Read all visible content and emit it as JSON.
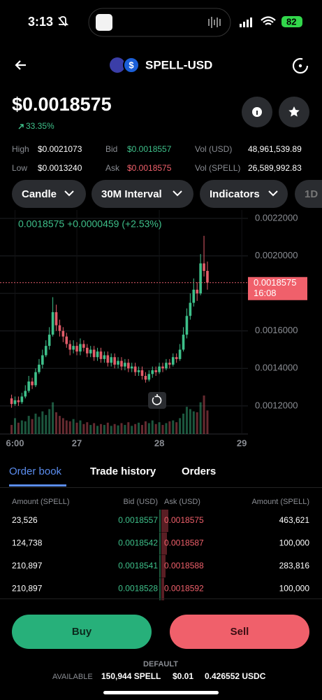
{
  "status_bar": {
    "time": "3:13",
    "battery": "82"
  },
  "header": {
    "title": "SPELL-USD"
  },
  "price": {
    "value": "$0.0018575",
    "change": "33.35%"
  },
  "stats": [
    [
      {
        "label": "High",
        "value": "$0.0021073"
      },
      {
        "label": "Bid",
        "value": "$0.0018557"
      },
      {
        "label": "Vol (USD)",
        "value": "48,961,539.89"
      }
    ],
    [
      {
        "label": "Low",
        "value": "$0.0013240"
      },
      {
        "label": "Ask",
        "value": "$0.0018575"
      },
      {
        "label": "Vol (SPELL)",
        "value": "26,589,992.83"
      }
    ]
  ],
  "controls": [
    "Candle",
    "30M Interval",
    "Indicators",
    "1D"
  ],
  "chart_data": {
    "type": "candlestick",
    "legend_text": "0.0018575 +0.0000459 (+2.53%)",
    "last_price": {
      "value": 0.0018575,
      "label": "0.0018575"
    },
    "last_time": "16:08",
    "up_color": "#3ec08a",
    "down_color": "#e35d6a",
    "x": [
      5,
      6,
      7,
      8,
      9,
      10,
      11,
      12,
      13,
      14,
      15,
      16,
      17,
      18,
      19,
      20,
      21,
      22,
      23,
      24,
      25,
      26,
      27,
      28,
      29,
      30,
      31,
      32,
      33,
      34,
      35,
      36,
      37,
      38,
      39,
      40,
      41,
      42,
      43,
      44,
      45,
      46,
      47,
      48,
      49,
      50,
      51,
      52,
      53,
      54,
      55,
      56,
      57,
      58,
      59,
      60,
      61,
      62
    ],
    "open": [
      0.00124,
      0.00121,
      0.00123,
      0.00122,
      0.00125,
      0.00128,
      0.00133,
      0.00131,
      0.00138,
      0.00142,
      0.00147,
      0.00152,
      0.00158,
      0.0017,
      0.00163,
      0.0016,
      0.00157,
      0.00153,
      0.0015,
      0.00152,
      0.00149,
      0.00153,
      0.00151,
      0.00148,
      0.0015,
      0.00146,
      0.00149,
      0.00145,
      0.00147,
      0.00143,
      0.00146,
      0.00142,
      0.00144,
      0.00141,
      0.00143,
      0.0014,
      0.00141,
      0.00138,
      0.00139,
      0.00136,
      0.00134,
      0.00137,
      0.00139,
      0.00138,
      0.00141,
      0.0014,
      0.00143,
      0.00142,
      0.00146,
      0.00145,
      0.0015,
      0.00158,
      0.00168,
      0.00175,
      0.00182,
      0.0018,
      0.00196,
      0.00192
    ],
    "high": [
      0.00126,
      0.00125,
      0.00125,
      0.00127,
      0.00131,
      0.00136,
      0.00135,
      0.0014,
      0.00145,
      0.0015,
      0.00155,
      0.00162,
      0.00178,
      0.00174,
      0.00166,
      0.00162,
      0.00159,
      0.00155,
      0.00155,
      0.00154,
      0.00156,
      0.00155,
      0.00153,
      0.00152,
      0.00152,
      0.00151,
      0.00151,
      0.00149,
      0.00149,
      0.00148,
      0.00148,
      0.00146,
      0.00146,
      0.00145,
      0.00145,
      0.00143,
      0.00143,
      0.00141,
      0.00141,
      0.00138,
      0.00139,
      0.00141,
      0.00141,
      0.00143,
      0.00143,
      0.00145,
      0.00145,
      0.00148,
      0.00148,
      0.00153,
      0.00162,
      0.00172,
      0.0018,
      0.00188,
      0.00186,
      0.00201,
      0.0021073,
      0.00197
    ],
    "low": [
      0.00119,
      0.0012,
      0.0012,
      0.00121,
      0.00124,
      0.00127,
      0.00129,
      0.0013,
      0.00137,
      0.0014,
      0.00146,
      0.0015,
      0.00157,
      0.0016,
      0.00157,
      0.00154,
      0.00151,
      0.00147,
      0.00148,
      0.00147,
      0.00147,
      0.00149,
      0.00146,
      0.00146,
      0.00144,
      0.00144,
      0.00143,
      0.00143,
      0.00141,
      0.00141,
      0.0014,
      0.0014,
      0.00139,
      0.00139,
      0.00138,
      0.00138,
      0.00136,
      0.00136,
      0.00134,
      0.001324,
      0.00133,
      0.00135,
      0.00136,
      0.00137,
      0.00138,
      0.00139,
      0.0014,
      0.00141,
      0.00143,
      0.00144,
      0.00149,
      0.00156,
      0.00166,
      0.00173,
      0.00176,
      0.00179,
      0.00189,
      0.00182
    ],
    "close": [
      0.00121,
      0.00123,
      0.00122,
      0.00125,
      0.00128,
      0.00133,
      0.00131,
      0.00138,
      0.00142,
      0.00147,
      0.00152,
      0.00158,
      0.0017,
      0.00163,
      0.0016,
      0.00157,
      0.00153,
      0.0015,
      0.00152,
      0.00149,
      0.00153,
      0.00151,
      0.00148,
      0.0015,
      0.00146,
      0.00149,
      0.00145,
      0.00147,
      0.00143,
      0.00146,
      0.00142,
      0.00144,
      0.00141,
      0.00143,
      0.0014,
      0.00141,
      0.00138,
      0.00139,
      0.00136,
      0.00134,
      0.00137,
      0.00139,
      0.00138,
      0.00141,
      0.0014,
      0.00143,
      0.00142,
      0.00146,
      0.00145,
      0.0015,
      0.00158,
      0.00168,
      0.00175,
      0.00182,
      0.0018,
      0.00196,
      0.00192,
      0.0018575
    ],
    "volume": [
      20,
      35,
      25,
      30,
      28,
      40,
      33,
      45,
      38,
      50,
      42,
      55,
      70,
      48,
      40,
      35,
      30,
      28,
      33,
      25,
      30,
      22,
      26,
      20,
      24,
      18,
      22,
      20,
      25,
      18,
      22,
      19,
      24,
      20,
      26,
      18,
      22,
      25,
      20,
      28,
      24,
      30,
      22,
      26,
      20,
      24,
      28,
      30,
      26,
      35,
      45,
      60,
      55,
      50,
      48,
      70,
      85,
      52
    ],
    "xlim": [
      1.63,
      73.8
    ],
    "ylim": [
      0.00105,
      0.002245
    ],
    "xticks": [
      {
        "value": 6,
        "label": "6:00"
      },
      {
        "value": 24,
        "label": "27"
      },
      {
        "value": 48,
        "label": "28"
      },
      {
        "value": 72,
        "label": "29"
      }
    ],
    "yticks": [
      {
        "value": 0.0012,
        "label": "0.0012000"
      },
      {
        "value": 0.0014,
        "label": "0.0014000"
      },
      {
        "value": 0.0016,
        "label": "0.0016000"
      },
      {
        "value": 0.0018,
        "label": "0.0018000"
      },
      {
        "value": 0.002,
        "label": "0.0020000"
      },
      {
        "value": 0.0022,
        "label": "0.0022000"
      }
    ],
    "grid": true
  },
  "tabs": [
    "Order book",
    "Trade history",
    "Orders"
  ],
  "order_book": {
    "columns": [
      "Amount (SPELL)",
      "Bid (USD)",
      "Ask (USD)",
      "Amount (SPELL)"
    ],
    "rows": [
      [
        "23,526",
        "0.0018557",
        "0.0018575",
        "463,621"
      ],
      [
        "124,738",
        "0.0018542",
        "0.0018587",
        "100,000"
      ],
      [
        "210,897",
        "0.0018541",
        "0.0018588",
        "283,816"
      ],
      [
        "210,897",
        "0.0018528",
        "0.0018592",
        "100,000"
      ]
    ]
  },
  "actions": {
    "buy": "Buy",
    "sell": "Sell"
  },
  "footer": {
    "mode": "DEFAULT",
    "available_label": "AVAILABLE",
    "balances": [
      "150,944 SPELL",
      "$0.01",
      "0.426552 USDC"
    ]
  }
}
